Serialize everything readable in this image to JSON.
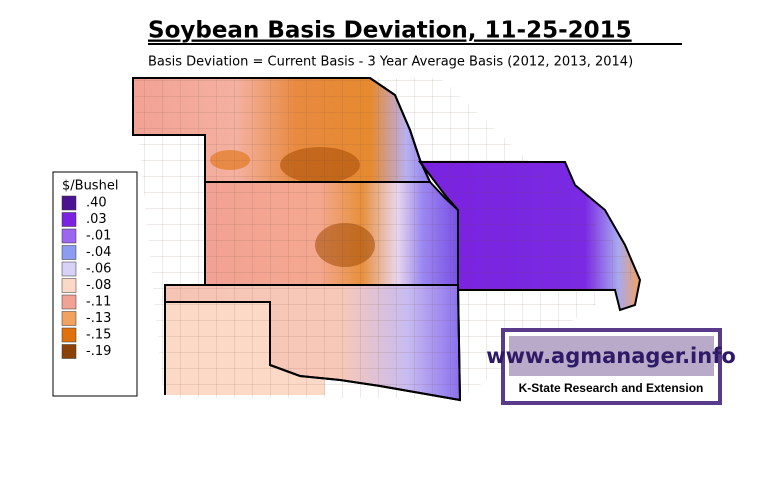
{
  "header": {
    "title": "Soybean Basis Deviation, 11-25-2015",
    "subtitle": "Basis Deviation = Current Basis - 3 Year Average Basis (2012, 2013, 2014)"
  },
  "legend": {
    "title": "$/Bushel",
    "items": [
      {
        "label": ".40",
        "color": "#4a1490"
      },
      {
        "label": ".03",
        "color": "#7a22e0"
      },
      {
        "label": "-.01",
        "color": "#9b66f0"
      },
      {
        "label": "-.04",
        "color": "#8c9cf0"
      },
      {
        "label": "-.06",
        "color": "#d8d2f6"
      },
      {
        "label": "-.08",
        "color": "#fbd9c6"
      },
      {
        "label": "-.11",
        "color": "#f2a294"
      },
      {
        "label": "-.13",
        "color": "#f2a260"
      },
      {
        "label": "-.15",
        "color": "#e0720e"
      },
      {
        "label": "-.19",
        "color": "#8a4208"
      }
    ]
  },
  "logo": {
    "url": "www.agmanager.info",
    "org": "K-State Research and Extension"
  }
}
